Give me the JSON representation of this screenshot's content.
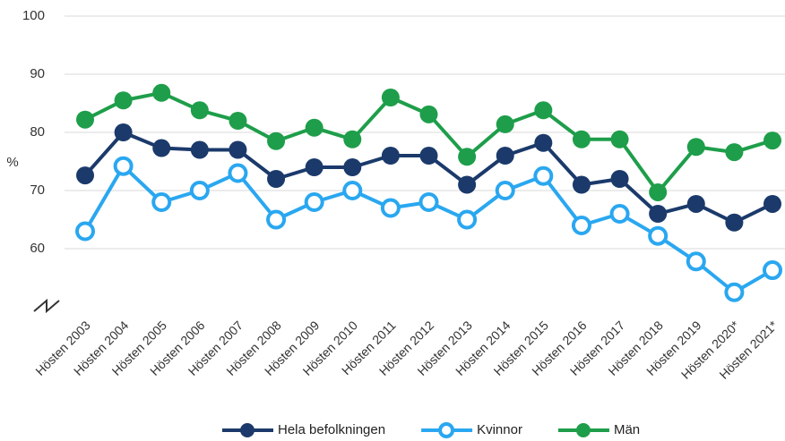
{
  "chart_data": {
    "type": "line",
    "y_label": "%",
    "categories": [
      "Hösten 2003",
      "Hösten 2004",
      "Hösten 2005",
      "Hösten 2006",
      "Hösten 2007",
      "Hösten 2008",
      "Hösten 2009",
      "Hösten 2010",
      "Hösten 2011",
      "Hösten 2012",
      "Hösten 2013",
      "Hösten 2014",
      "Hösten 2015",
      "Hösten 2016",
      "Hösten 2017",
      "Hösten 2018",
      "Hösten 2019",
      "Hösten 2020*",
      "Hösten 2021*"
    ],
    "series": [
      {
        "name": "Hela befolkningen",
        "color": "#1b3a6b",
        "marker": "filled",
        "values": [
          72.6,
          80,
          77.3,
          77,
          77,
          72,
          74,
          74,
          76,
          76,
          71,
          76,
          78.2,
          71,
          72,
          66,
          67.7,
          64.5,
          67.7
        ]
      },
      {
        "name": "Kvinnor",
        "color": "#2aa7f0",
        "marker": "open",
        "values": [
          63,
          74.2,
          68,
          70,
          73,
          65,
          68,
          70,
          67,
          68,
          65,
          70,
          72.5,
          64,
          66,
          62.2,
          57.8,
          52.5,
          56.3
        ]
      },
      {
        "name": "Män",
        "color": "#1e9e4a",
        "marker": "filled",
        "values": [
          82.2,
          85.5,
          86.8,
          83.8,
          82,
          78.5,
          80.8,
          78.8,
          86,
          83.1,
          75.8,
          81.4,
          83.8,
          78.8,
          78.8,
          69.7,
          77.5,
          76.6,
          78.6
        ]
      }
    ],
    "ylim": [
      50,
      100
    ],
    "yticks": [
      60,
      70,
      80,
      90,
      100
    ],
    "grid": true,
    "legend": "bottom"
  }
}
